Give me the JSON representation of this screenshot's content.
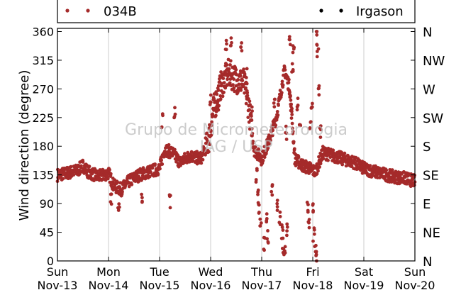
{
  "chart_data": {
    "type": "scatter",
    "title": "",
    "ylabel": "Wind direction (degree)",
    "watermark": [
      "Grupo de Micrometeorologia",
      "IAG / USP"
    ],
    "xlim": [
      0,
      7
    ],
    "ylim": [
      0,
      365
    ],
    "grid": true,
    "legend_position": "top",
    "x_ticks": [
      {
        "x": 0,
        "top": "Sun",
        "bottom": "Nov-13"
      },
      {
        "x": 1,
        "top": "Mon",
        "bottom": "Nov-14"
      },
      {
        "x": 2,
        "top": "Tue",
        "bottom": "Nov-15"
      },
      {
        "x": 3,
        "top": "Wed",
        "bottom": "Nov-16"
      },
      {
        "x": 4,
        "top": "Thu",
        "bottom": "Nov-17"
      },
      {
        "x": 5,
        "top": "Fri",
        "bottom": "Nov-18"
      },
      {
        "x": 6,
        "top": "Sat",
        "bottom": "Nov-19"
      },
      {
        "x": 7,
        "top": "Sun",
        "bottom": "Nov-20"
      }
    ],
    "y_ticks": [
      0,
      45,
      90,
      135,
      180,
      225,
      270,
      315,
      360
    ],
    "y2_ticks": [
      {
        "y": 0,
        "label": "N"
      },
      {
        "y": 45,
        "label": "NE"
      },
      {
        "y": 90,
        "label": "E"
      },
      {
        "y": 135,
        "label": "SE"
      },
      {
        "y": 180,
        "label": "S"
      },
      {
        "y": 225,
        "label": "SW"
      },
      {
        "y": 270,
        "label": "W"
      },
      {
        "y": 315,
        "label": "NW"
      },
      {
        "y": 360,
        "label": "N"
      }
    ],
    "series": [
      {
        "name": "034B",
        "color": "#a52a2a",
        "profile": [
          [
            0.0,
            135
          ],
          [
            0.2,
            138
          ],
          [
            0.4,
            142
          ],
          [
            0.5,
            150
          ],
          [
            0.6,
            140
          ],
          [
            0.8,
            132
          ],
          [
            1.0,
            138
          ],
          [
            1.1,
            118
          ],
          [
            1.25,
            112
          ],
          [
            1.4,
            125
          ],
          [
            1.6,
            135
          ],
          [
            1.8,
            140
          ],
          [
            2.0,
            145
          ],
          [
            2.1,
            175
          ],
          [
            2.25,
            170
          ],
          [
            2.4,
            155
          ],
          [
            2.6,
            165
          ],
          [
            2.8,
            160
          ],
          [
            2.95,
            185
          ],
          [
            3.05,
            235
          ],
          [
            3.2,
            275
          ],
          [
            3.35,
            295
          ],
          [
            3.5,
            285
          ],
          [
            3.65,
            280
          ],
          [
            3.75,
            240
          ],
          [
            3.85,
            175
          ],
          [
            4.0,
            160
          ],
          [
            4.15,
            190
          ],
          [
            4.3,
            230
          ],
          [
            4.45,
            300
          ],
          [
            4.55,
            270
          ],
          [
            4.65,
            160
          ],
          [
            4.8,
            150
          ],
          [
            4.95,
            145
          ],
          [
            5.05,
            140
          ],
          [
            5.2,
            170
          ],
          [
            5.4,
            165
          ],
          [
            5.6,
            160
          ],
          [
            5.8,
            155
          ],
          [
            6.0,
            145
          ],
          [
            6.3,
            138
          ],
          [
            6.6,
            132
          ],
          [
            6.8,
            130
          ],
          [
            7.0,
            125
          ]
        ],
        "scattered_points": [
          [
            1.2,
            90
          ],
          [
            1.05,
            100
          ],
          [
            2.3,
            233
          ],
          [
            3.0,
            255
          ],
          [
            3.15,
            248
          ],
          [
            3.3,
            340
          ],
          [
            3.4,
            345
          ],
          [
            3.6,
            340
          ],
          [
            3.9,
            135
          ],
          [
            3.92,
            100
          ],
          [
            3.95,
            80
          ],
          [
            3.98,
            60
          ],
          [
            4.05,
            25
          ],
          [
            4.1,
            70
          ],
          [
            4.12,
            40
          ],
          [
            4.2,
            110
          ],
          [
            4.3,
            90
          ],
          [
            4.35,
            65
          ],
          [
            4.4,
            45
          ],
          [
            4.42,
            25
          ],
          [
            4.45,
            15
          ],
          [
            4.5,
            50
          ],
          [
            4.55,
            345
          ],
          [
            4.6,
            300
          ],
          [
            4.62,
            330
          ],
          [
            4.7,
            245
          ],
          [
            4.75,
            210
          ],
          [
            4.9,
            85
          ],
          [
            4.92,
            60
          ],
          [
            4.95,
            210
          ],
          [
            4.98,
            250
          ],
          [
            5.0,
            80
          ],
          [
            5.02,
            40
          ],
          [
            5.05,
            15
          ],
          [
            5.07,
            5
          ],
          [
            5.08,
            350
          ],
          [
            5.1,
            330
          ],
          [
            5.12,
            270
          ],
          [
            5.15,
            200
          ],
          [
            3.7,
            290
          ],
          [
            3.8,
            230
          ],
          [
            2.2,
            95
          ],
          [
            2.05,
            220
          ],
          [
            4.25,
            250
          ],
          [
            4.48,
            200
          ],
          [
            4.58,
            240
          ],
          [
            1.65,
            95
          ]
        ]
      },
      {
        "name": "Irgason",
        "color": "#000000",
        "profile": [],
        "scattered_points": []
      }
    ]
  }
}
